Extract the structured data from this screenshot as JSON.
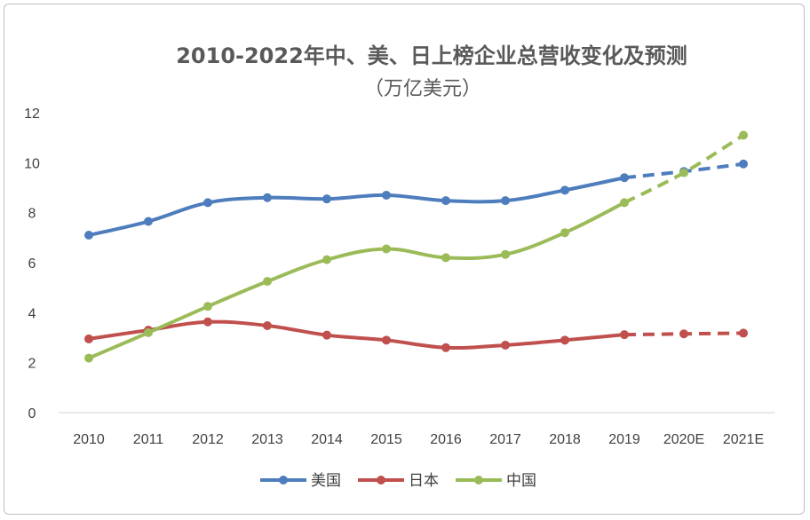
{
  "chart_data": {
    "type": "line",
    "title": "2010-2022年中、美、日上榜企业总营收变化及预测",
    "subtitle": "（万亿美元）",
    "categories": [
      "2010",
      "2011",
      "2012",
      "2013",
      "2014",
      "2015",
      "2016",
      "2017",
      "2018",
      "2019",
      "2020E",
      "2021E"
    ],
    "actual_last_index": 9,
    "ylim": [
      0,
      12
    ],
    "yticks": [
      0,
      2,
      4,
      6,
      8,
      10,
      12
    ],
    "series": [
      {
        "name": "美国",
        "color": "#4e7dbd",
        "values": [
          7.1,
          7.65,
          8.4,
          8.6,
          8.55,
          8.7,
          8.48,
          8.48,
          8.9,
          9.4,
          9.65,
          9.95
        ]
      },
      {
        "name": "日本",
        "color": "#c0504d",
        "values": [
          2.95,
          3.3,
          3.63,
          3.48,
          3.1,
          2.9,
          2.6,
          2.7,
          2.9,
          3.12,
          3.15,
          3.18
        ]
      },
      {
        "name": "中国",
        "color": "#9bbb59",
        "values": [
          2.18,
          3.2,
          4.25,
          5.25,
          6.12,
          6.55,
          6.2,
          6.33,
          7.2,
          8.4,
          9.6,
          11.1
        ]
      }
    ],
    "legend_position": "bottom"
  }
}
